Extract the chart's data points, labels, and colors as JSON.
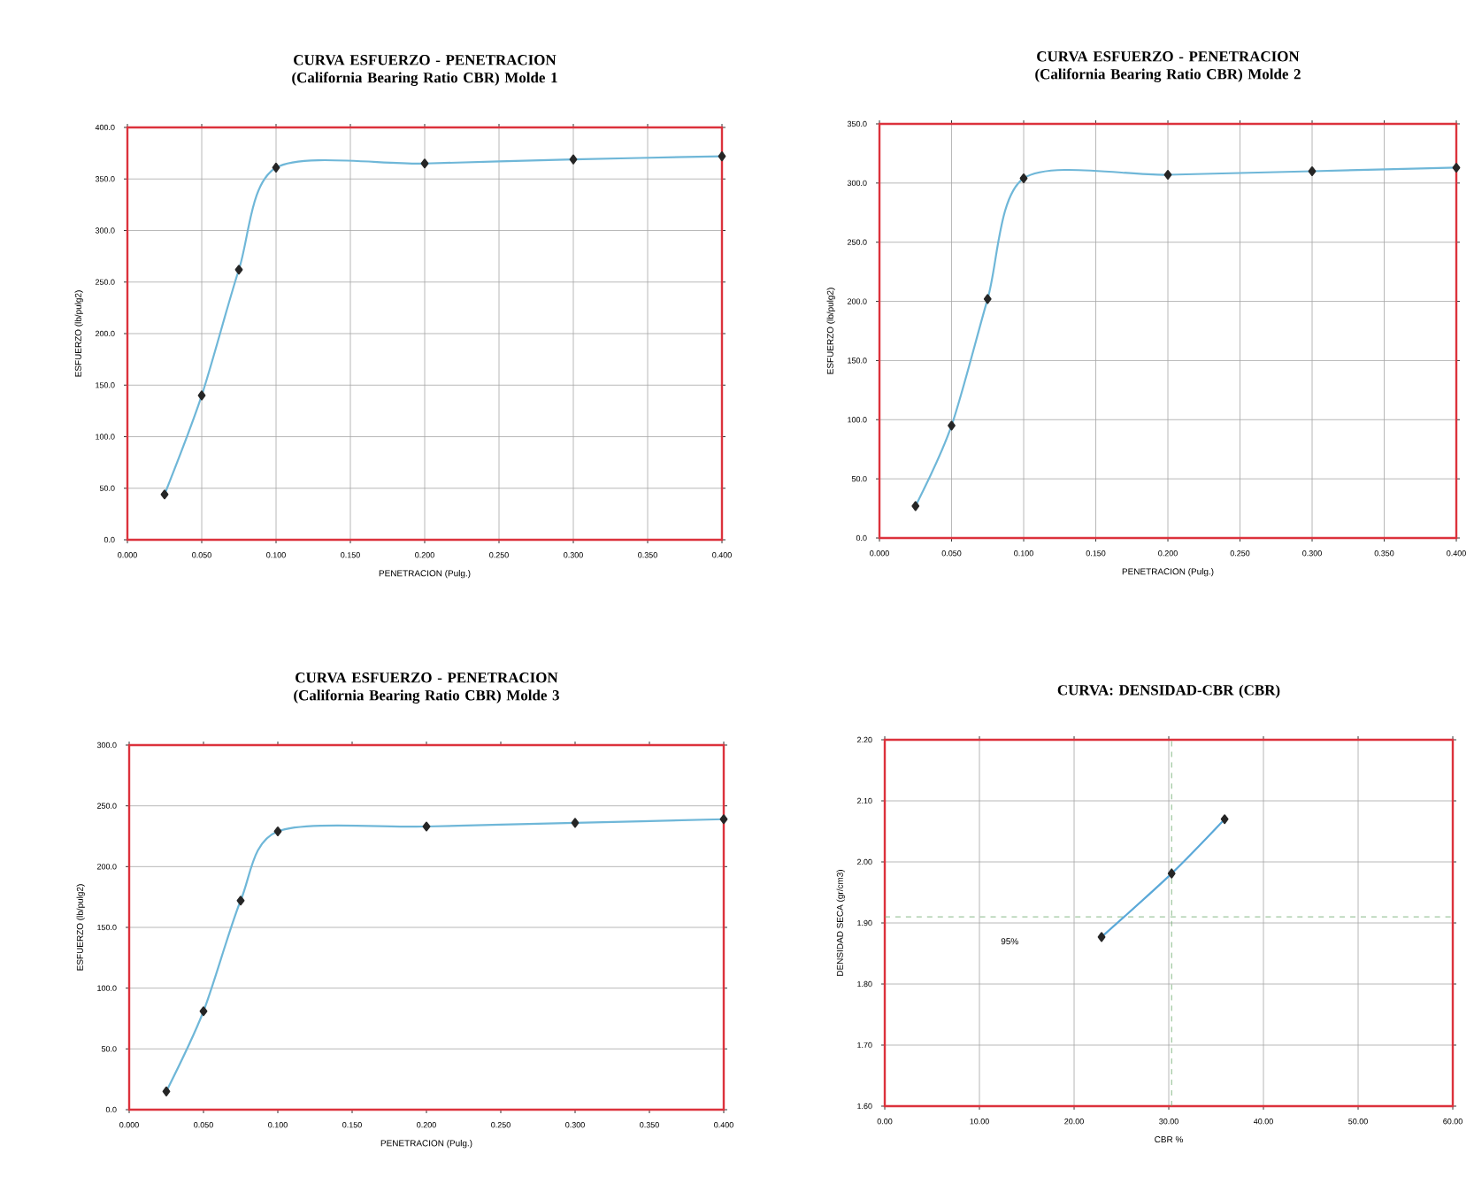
{
  "chart_data": [
    {
      "type": "line",
      "title": "CURVA ESFUERZO - PENETRACION (California Bearing Ratio CBR) Molde 1",
      "xlabel": "PENETRACION (Pulg.)",
      "ylabel": "ESFUERZO (lb/pulg2)",
      "x": [
        0.025,
        0.05,
        0.075,
        0.1,
        0.2,
        0.3,
        0.4
      ],
      "series": [
        {
          "color": "#6fb7d8",
          "values": [
            44,
            140,
            262,
            361,
            365,
            369,
            372
          ]
        }
      ],
      "xlim": [
        0,
        0.4
      ],
      "ylim": [
        0,
        400
      ],
      "marker": "diamond",
      "grid": true,
      "xticks": [
        {
          "value": 0,
          "label": "0.000"
        },
        {
          "value": 0.05,
          "label": "0.050"
        },
        {
          "value": 0.1,
          "label": "0.100"
        },
        {
          "value": 0.15,
          "label": "0.150"
        },
        {
          "value": 0.2,
          "label": "0.200"
        },
        {
          "value": 0.25,
          "label": "0.250"
        },
        {
          "value": 0.3,
          "label": "0.300"
        },
        {
          "value": 0.35,
          "label": "0.350"
        },
        {
          "value": 0.4,
          "label": "0.400"
        }
      ],
      "yticks": [
        {
          "value": 0,
          "label": "0.0"
        },
        {
          "value": 50,
          "label": "50.0"
        },
        {
          "value": 100,
          "label": "100.0"
        },
        {
          "value": 150,
          "label": "150.0"
        },
        {
          "value": 200,
          "label": "200.0"
        },
        {
          "value": 250,
          "label": "250.0"
        },
        {
          "value": 300,
          "label": "300.0"
        },
        {
          "value": 350,
          "label": "350.0"
        },
        {
          "value": 400,
          "label": "400.0"
        }
      ]
    },
    {
      "type": "line",
      "title": "CURVA ESFUERZO - PENETRACION (California Bearing Ratio CBR) Molde 2",
      "xlabel": "PENETRACION (Pulg.)",
      "ylabel": "ESFUERZO (lb/pulg2)",
      "x": [
        0.025,
        0.05,
        0.075,
        0.1,
        0.2,
        0.3,
        0.4
      ],
      "series": [
        {
          "color": "#6fb7d8",
          "values": [
            27,
            95,
            202,
            304,
            307,
            310,
            313
          ]
        }
      ],
      "xlim": [
        0,
        0.4
      ],
      "ylim": [
        0,
        350
      ],
      "marker": "diamond",
      "grid": true,
      "xticks": [
        {
          "value": 0,
          "label": "0.000"
        },
        {
          "value": 0.05,
          "label": "0.050"
        },
        {
          "value": 0.1,
          "label": "0.100"
        },
        {
          "value": 0.15,
          "label": "0.150"
        },
        {
          "value": 0.2,
          "label": "0.200"
        },
        {
          "value": 0.25,
          "label": "0.250"
        },
        {
          "value": 0.3,
          "label": "0.300"
        },
        {
          "value": 0.35,
          "label": "0.350"
        },
        {
          "value": 0.4,
          "label": "0.400"
        }
      ],
      "yticks": [
        {
          "value": 0,
          "label": "0.0"
        },
        {
          "value": 50,
          "label": "50.0"
        },
        {
          "value": 100,
          "label": "100.0"
        },
        {
          "value": 150,
          "label": "150.0"
        },
        {
          "value": 200,
          "label": "200.0"
        },
        {
          "value": 250,
          "label": "250.0"
        },
        {
          "value": 300,
          "label": "300.0"
        },
        {
          "value": 350,
          "label": "350.0"
        }
      ]
    },
    {
      "type": "line",
      "title": "CURVA ESFUERZO - PENETRACION (California Bearing Ratio CBR) Molde 3",
      "xlabel": "PENETRACION (Pulg.)",
      "ylabel": "ESFUERZO (lb/pulg2)",
      "x": [
        0.025,
        0.05,
        0.075,
        0.1,
        0.2,
        0.3,
        0.4
      ],
      "series": [
        {
          "color": "#6fb7d8",
          "values": [
            15,
            81,
            172,
            229,
            233,
            236,
            239
          ]
        }
      ],
      "xlim": [
        0,
        0.4
      ],
      "ylim": [
        0,
        300
      ],
      "marker": "diamond",
      "grid": "y",
      "xticks": [
        {
          "value": 0,
          "label": "0.000"
        },
        {
          "value": 0.05,
          "label": "0.050"
        },
        {
          "value": 0.1,
          "label": "0.100"
        },
        {
          "value": 0.15,
          "label": "0.150"
        },
        {
          "value": 0.2,
          "label": "0.200"
        },
        {
          "value": 0.25,
          "label": "0.250"
        },
        {
          "value": 0.3,
          "label": "0.300"
        },
        {
          "value": 0.35,
          "label": "0.350"
        },
        {
          "value": 0.4,
          "label": "0.400"
        }
      ],
      "yticks": [
        {
          "value": 0,
          "label": "0.0"
        },
        {
          "value": 50,
          "label": "50.0"
        },
        {
          "value": 100,
          "label": "100.0"
        },
        {
          "value": 150,
          "label": "150.0"
        },
        {
          "value": 200,
          "label": "200.0"
        },
        {
          "value": 250,
          "label": "250.0"
        },
        {
          "value": 300,
          "label": "300.0"
        }
      ]
    },
    {
      "type": "line",
      "title": "CURVA:  DENSIDAD-CBR (CBR)",
      "xlabel": "CBR %",
      "ylabel": "DENSIDAD SECA (gr/cm3)",
      "x": [
        22.9,
        30.3,
        35.9
      ],
      "series": [
        {
          "color": "#5aa8d8",
          "values": [
            1.877,
            1.981,
            2.07
          ]
        }
      ],
      "xlim": [
        0,
        60
      ],
      "ylim": [
        1.6,
        2.2
      ],
      "marker": "diamond",
      "grid": true,
      "annotations": [
        "95%"
      ],
      "ref_lines": [
        {
          "axis": "y",
          "value": 1.91,
          "color": "#6aa86a",
          "line_style": "dashed"
        },
        {
          "axis": "x",
          "value": 30.3,
          "color": "#6aa86a",
          "line_style": "dashed"
        }
      ],
      "xticks": [
        {
          "value": 0,
          "label": "0.00"
        },
        {
          "value": 10,
          "label": "10.00"
        },
        {
          "value": 20,
          "label": "20.00"
        },
        {
          "value": 30,
          "label": "30.00"
        },
        {
          "value": 40,
          "label": "40.00"
        },
        {
          "value": 50,
          "label": "50.00"
        },
        {
          "value": 60,
          "label": "60.00"
        }
      ],
      "yticks": [
        {
          "value": 1.6,
          "label": "1.60"
        },
        {
          "value": 1.7,
          "label": "1.70"
        },
        {
          "value": 1.8,
          "label": "1.80"
        },
        {
          "value": 1.9,
          "label": "1.90"
        },
        {
          "value": 2.0,
          "label": "2.00"
        },
        {
          "value": 2.1,
          "label": "2.10"
        },
        {
          "value": 2.2,
          "label": "2.20"
        }
      ]
    }
  ]
}
